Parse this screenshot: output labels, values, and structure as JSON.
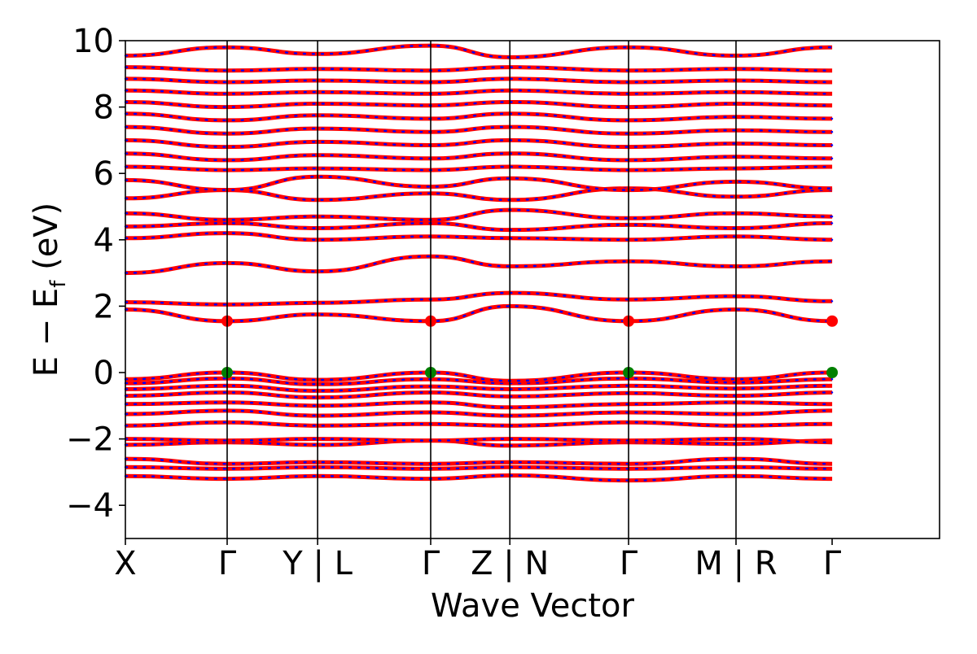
{
  "chart_data": {
    "type": "line",
    "title": "",
    "xlabel": "Wave Vector",
    "ylabel_main": "E − E",
    "ylabel_sub": "f",
    "ylabel_unit": " (eV)",
    "ylim": [
      -5,
      10
    ],
    "yticks": [
      -4,
      -2,
      0,
      2,
      4,
      6,
      8,
      10
    ],
    "ytick_labels": [
      "−4",
      "−2",
      "0",
      "2",
      "4",
      "6",
      "8",
      "10"
    ],
    "xlim": [
      0,
      7.2
    ],
    "kpath_positions": [
      0,
      0.9,
      1.7,
      2.7,
      3.4,
      4.45,
      5.4,
      6.25
    ],
    "kpath_labels": [
      "X",
      "Γ",
      "Y | L",
      "Γ",
      "Z | N",
      "Γ",
      "M | R",
      "Γ"
    ],
    "segments": [
      {
        "from": "X",
        "to": "Γ",
        "x": [
          0,
          0.9
        ]
      },
      {
        "from": "Γ",
        "to": "Y",
        "x": [
          0.9,
          1.7
        ]
      },
      {
        "from": "L",
        "to": "Γ",
        "x": [
          1.7,
          2.7
        ]
      },
      {
        "from": "Γ",
        "to": "Z",
        "x": [
          2.7,
          3.4
        ]
      },
      {
        "from": "N",
        "to": "Γ",
        "x": [
          3.4,
          4.45
        ]
      },
      {
        "from": "Γ",
        "to": "M",
        "x": [
          4.45,
          5.4
        ]
      },
      {
        "from": "R",
        "to": "Γ",
        "x": [
          5.4,
          6.25
        ]
      }
    ],
    "series_colors": {
      "band_line": "#ff0000",
      "band_dots": "#0000ff",
      "cbm": "#ff0000",
      "vbm": "#008000"
    },
    "grid": false,
    "bands": [
      {
        "values": [
          -3.12,
          -3.2,
          -3.12,
          -3.2,
          -3.1,
          -3.25,
          -3.12,
          -3.2
        ]
      },
      {
        "values": [
          -2.85,
          -2.9,
          -2.85,
          -2.9,
          -2.85,
          -2.9,
          -2.85,
          -2.9
        ]
      },
      {
        "values": [
          -2.6,
          -2.75,
          -2.7,
          -2.75,
          -2.7,
          -2.75,
          -2.6,
          -2.75
        ]
      },
      {
        "values": [
          -2.18,
          -2.1,
          -2.18,
          -2.05,
          -2.2,
          -2.1,
          -2.15,
          -2.05
        ]
      },
      {
        "values": [
          -2.0,
          -2.05,
          -2.0,
          -2.05,
          -2.0,
          -2.05,
          -2.0,
          -2.1
        ]
      },
      {
        "values": [
          -1.6,
          -1.5,
          -1.6,
          -1.55,
          -1.6,
          -1.5,
          -1.6,
          -1.55
        ]
      },
      {
        "values": [
          -1.25,
          -1.15,
          -1.3,
          -1.2,
          -1.3,
          -1.2,
          -1.25,
          -1.15
        ]
      },
      {
        "values": [
          -0.95,
          -0.9,
          -1.0,
          -0.9,
          -1.05,
          -0.95,
          -0.9,
          -0.95
        ]
      },
      {
        "values": [
          -0.7,
          -0.6,
          -0.75,
          -0.6,
          -0.72,
          -0.62,
          -0.7,
          -0.6
        ]
      },
      {
        "values": [
          -0.5,
          -0.4,
          -0.55,
          -0.42,
          -0.5,
          -0.4,
          -0.48,
          -0.4
        ]
      },
      {
        "values": [
          -0.32,
          -0.18,
          -0.35,
          -0.2,
          -0.32,
          -0.18,
          -0.3,
          -0.2
        ]
      },
      {
        "values": [
          -0.2,
          0.0,
          -0.22,
          0.0,
          -0.25,
          0.0,
          -0.2,
          0.0
        ]
      },
      {
        "values": [
          1.9,
          1.55,
          1.75,
          1.55,
          2.0,
          1.55,
          1.9,
          1.55
        ]
      },
      {
        "values": [
          2.12,
          2.05,
          2.1,
          2.2,
          2.4,
          2.2,
          2.3,
          2.15
        ]
      },
      {
        "values": [
          3.0,
          3.3,
          3.05,
          3.5,
          3.2,
          3.35,
          3.2,
          3.35
        ]
      },
      {
        "values": [
          4.05,
          4.2,
          4.0,
          4.1,
          4.05,
          4.0,
          4.1,
          4.0
        ]
      },
      {
        "values": [
          4.4,
          4.5,
          4.35,
          4.5,
          4.3,
          4.45,
          4.35,
          4.5
        ]
      },
      {
        "values": [
          4.8,
          4.6,
          4.7,
          4.6,
          4.9,
          4.65,
          4.8,
          4.7
        ]
      },
      {
        "values": [
          5.25,
          5.5,
          5.2,
          5.4,
          5.2,
          5.55,
          5.3,
          5.5
        ]
      },
      {
        "values": [
          5.8,
          5.5,
          5.9,
          5.6,
          5.85,
          5.5,
          5.75,
          5.55
        ]
      },
      {
        "values": [
          6.2,
          6.1,
          6.15,
          6.1,
          6.2,
          6.1,
          6.15,
          6.2
        ]
      },
      {
        "values": [
          6.6,
          6.4,
          6.55,
          6.45,
          6.6,
          6.4,
          6.5,
          6.45
        ]
      },
      {
        "values": [
          7.0,
          6.8,
          6.95,
          6.85,
          7.0,
          6.8,
          6.9,
          6.85
        ]
      },
      {
        "values": [
          7.4,
          7.2,
          7.35,
          7.25,
          7.4,
          7.2,
          7.3,
          7.25
        ]
      },
      {
        "values": [
          7.8,
          7.6,
          7.75,
          7.65,
          7.8,
          7.6,
          7.7,
          7.65
        ]
      },
      {
        "values": [
          8.15,
          8.0,
          8.1,
          8.05,
          8.15,
          8.0,
          8.1,
          8.05
        ]
      },
      {
        "values": [
          8.5,
          8.4,
          8.45,
          8.4,
          8.5,
          8.4,
          8.45,
          8.4
        ]
      },
      {
        "values": [
          8.85,
          8.75,
          8.8,
          8.75,
          8.85,
          8.75,
          8.8,
          8.75
        ]
      },
      {
        "values": [
          9.2,
          9.1,
          9.15,
          9.1,
          9.2,
          9.1,
          9.15,
          9.1
        ]
      },
      {
        "values": [
          9.55,
          9.8,
          9.6,
          9.85,
          9.5,
          9.8,
          9.55,
          9.8
        ]
      }
    ],
    "cbm_points": [
      {
        "x": 0.9,
        "y": 1.55
      },
      {
        "x": 2.7,
        "y": 1.55
      },
      {
        "x": 4.45,
        "y": 1.55
      },
      {
        "x": 6.25,
        "y": 1.55
      }
    ],
    "vbm_points": [
      {
        "x": 0.9,
        "y": 0.0
      },
      {
        "x": 2.7,
        "y": 0.0
      },
      {
        "x": 4.45,
        "y": 0.0
      },
      {
        "x": 6.25,
        "y": 0.0
      }
    ]
  }
}
